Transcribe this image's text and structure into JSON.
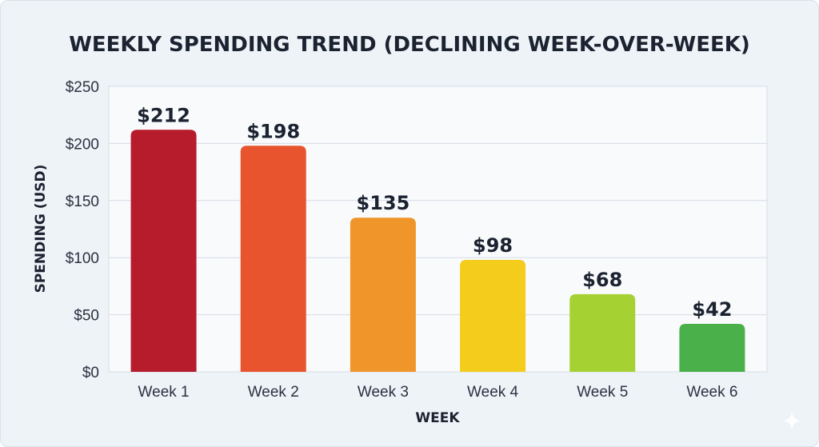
{
  "chart_data": {
    "type": "bar",
    "title": "WEEKLY SPENDING TREND (DECLINING WEEK-OVER-WEEK)",
    "xlabel": "WEEK",
    "ylabel": "SPENDING (USD)",
    "categories": [
      "Week 1",
      "Week 2",
      "Week 3",
      "Week 4",
      "Week 5",
      "Week 6"
    ],
    "values": [
      212,
      198,
      135,
      98,
      68,
      42
    ],
    "data_labels": [
      "$212",
      "$198",
      "$135",
      "$98",
      "$68",
      "$42"
    ],
    "ylim": [
      0,
      250
    ],
    "yticks": [
      0,
      50,
      100,
      150,
      200,
      250
    ],
    "ytick_labels": [
      "$0",
      "$50",
      "$100",
      "$150",
      "$200",
      "$250"
    ],
    "bar_colors": [
      "#b71c2c",
      "#e8542e",
      "#f0952a",
      "#f3cc1c",
      "#a6d132",
      "#49b04a"
    ],
    "grid": true,
    "legend": "none"
  },
  "colors": {
    "background": "#eef3f8",
    "plot_area": "#f8fafc",
    "gridline": "#d6dde6",
    "text": "#1b2230"
  },
  "decoration": {
    "corner_icon": "sparkle-icon"
  }
}
